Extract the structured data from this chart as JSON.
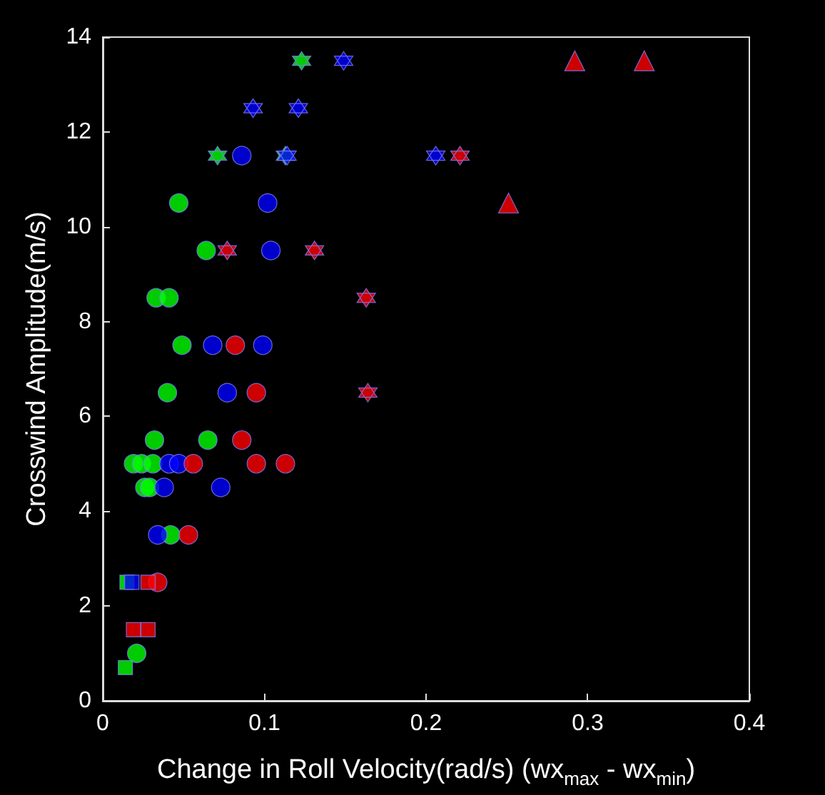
{
  "chart_data": {
    "type": "scatter",
    "xlabel": "Change in Roll Velocity(rad/s) (wx$_{max}$ - wx$_{min}$)",
    "ylabel": "Crosswind Amplitude(m/s)",
    "xlim": [
      0,
      0.4
    ],
    "xticks": [
      0,
      0.1,
      0.2,
      0.3,
      0.4
    ],
    "ylim": [
      0,
      14
    ],
    "yticks": [
      0,
      2,
      4,
      6,
      8,
      10,
      12,
      14
    ],
    "grid": false,
    "series": [
      {
        "color": "#00ff00",
        "marker": "circle",
        "x": [
          0.047,
          0.064,
          0.033,
          0.041,
          0.049,
          0.04,
          0.032,
          0.065,
          0.019,
          0.024,
          0.031,
          0.026,
          0.029,
          0.042,
          0.021
        ],
        "values": [
          10.5,
          9.5,
          8.5,
          8.5,
          7.5,
          6.5,
          5.5,
          5.5,
          5,
          5,
          5,
          4.5,
          4.5,
          3.5,
          1
        ]
      },
      {
        "color": "#0000ff",
        "marker": "circle",
        "x": [
          0.086,
          0.102,
          0.104,
          0.068,
          0.099,
          0.077,
          0.041,
          0.047,
          0.038,
          0.073,
          0.034
        ],
        "values": [
          11.5,
          10.5,
          9.5,
          7.5,
          7.5,
          6.5,
          5,
          5,
          4.5,
          4.5,
          3.5
        ]
      },
      {
        "color": "#ff0000",
        "marker": "circle",
        "x": [
          0.082,
          0.095,
          0.086,
          0.056,
          0.095,
          0.113,
          0.053,
          0.034
        ],
        "values": [
          7.5,
          6.5,
          5.5,
          5,
          5,
          5,
          3.5,
          2.5
        ]
      },
      {
        "color": "#00ff00",
        "marker": "star",
        "x": [
          0.123,
          0.071,
          0.113
        ],
        "values": [
          13.5,
          11.5,
          11.5
        ]
      },
      {
        "color": "#0000ff",
        "marker": "star",
        "x": [
          0.149,
          0.093,
          0.121,
          0.114,
          0.206
        ],
        "values": [
          13.5,
          12.5,
          12.5,
          11.5,
          11.5
        ]
      },
      {
        "color": "#ff0000",
        "marker": "star",
        "x": [
          0.221,
          0.077,
          0.131,
          0.163,
          0.164
        ],
        "values": [
          11.5,
          9.5,
          9.5,
          8.5,
          6.5
        ]
      },
      {
        "color": "#ff0000",
        "marker": "triangle",
        "x": [
          0.292,
          0.335,
          0.251
        ],
        "values": [
          13.5,
          13.5,
          10.5
        ]
      },
      {
        "color": "#00ff00",
        "marker": "square",
        "x": [
          0.015,
          0.014
        ],
        "values": [
          2.5,
          0.7
        ]
      },
      {
        "color": "#0000ff",
        "marker": "square",
        "x": [
          0.018
        ],
        "values": [
          2.5
        ]
      },
      {
        "color": "#ff0000",
        "marker": "square",
        "x": [
          0.028,
          0.019,
          0.028
        ],
        "values": [
          2.5,
          1.5,
          1.5
        ]
      }
    ]
  }
}
